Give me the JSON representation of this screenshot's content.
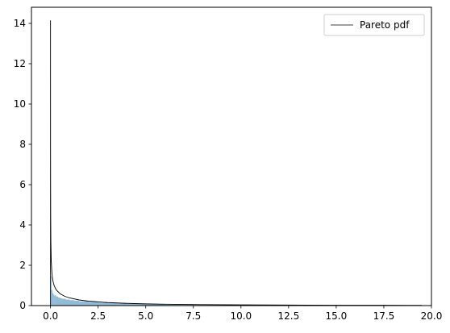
{
  "chart_data": {
    "type": "line",
    "title": "",
    "xlabel": "",
    "ylabel": "",
    "xlim": [
      -1.0,
      20.0
    ],
    "ylim": [
      0,
      14.8
    ],
    "xticks": [
      0.0,
      2.5,
      5.0,
      7.5,
      10.0,
      12.5,
      15.0,
      17.5,
      20.0
    ],
    "xtick_labels": [
      "0.0",
      "2.5",
      "5.0",
      "7.5",
      "10.0",
      "12.5",
      "15.0",
      "17.5",
      "20.0"
    ],
    "yticks": [
      0,
      2,
      4,
      6,
      8,
      10,
      12,
      14
    ],
    "ytick_labels": [
      "0",
      "2",
      "4",
      "6",
      "8",
      "10",
      "12",
      "14"
    ],
    "grid": false,
    "legend_position": "top-right",
    "series": [
      {
        "name": "Pareto pdf",
        "kind": "line",
        "color": "#000000",
        "x": [
          0.001,
          0.0015,
          0.002,
          0.003,
          0.005,
          0.01,
          0.02,
          0.04,
          0.07,
          0.1,
          0.15,
          0.2,
          0.3,
          0.5,
          0.75,
          1.0,
          1.5,
          2.0,
          3.0,
          4.0,
          5.0,
          6.0,
          8.0,
          10.0,
          12.5,
          15.0,
          17.5,
          19.5
        ],
        "y": [
          14.15,
          11.5,
          9.9,
          8.1,
          6.27,
          4.43,
          3.13,
          2.21,
          1.67,
          1.39,
          1.13,
          0.97,
          0.78,
          0.59,
          0.46,
          0.38,
          0.28,
          0.22,
          0.15,
          0.11,
          0.085,
          0.068,
          0.047,
          0.035,
          0.025,
          0.019,
          0.015,
          0.012
        ]
      },
      {
        "name": "",
        "kind": "histogram",
        "color": "#1f77b4",
        "bins_x": [
          0.0,
          0.05,
          0.1,
          0.15,
          0.2,
          0.3,
          0.4,
          0.5,
          0.6,
          0.8,
          1.0,
          1.25,
          1.5,
          2.0,
          2.5,
          3.0,
          3.5,
          4.0,
          5.0,
          6.0,
          7.5,
          10.0,
          12.5,
          15.0,
          17.5
        ],
        "values": [
          1.45,
          0.78,
          0.62,
          0.55,
          0.5,
          0.45,
          0.4,
          0.37,
          0.34,
          0.3,
          0.27,
          0.24,
          0.21,
          0.18,
          0.15,
          0.12,
          0.1,
          0.08,
          0.06,
          0.045,
          0.035,
          0.025,
          0.018,
          0.014
        ]
      }
    ]
  }
}
